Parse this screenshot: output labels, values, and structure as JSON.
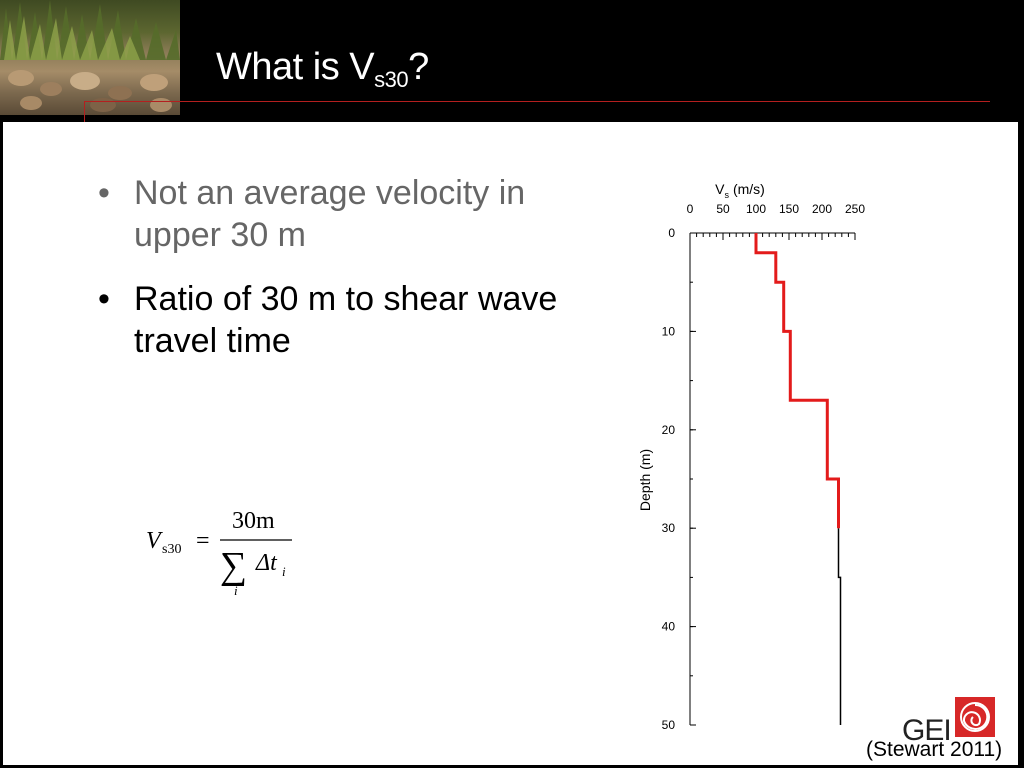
{
  "title": {
    "main": "What is V",
    "sub": "s30",
    "end": "?"
  },
  "bullets": [
    {
      "marker": "•",
      "text": "Not an average velocity in upper 30 m"
    },
    {
      "marker": "•",
      "text": "Ratio of 30 m to shear wave travel time"
    }
  ],
  "formula": {
    "lhs_symbol": "V",
    "lhs_sub": "s30",
    "equals": "=",
    "numerator": "30m",
    "sum": "∑",
    "sum_index": "i",
    "delta": "Δt",
    "delta_sub": "i"
  },
  "citation": "(Stewart 2011)",
  "logo_text": "GEI",
  "colors": {
    "highlight": "#e31b1b",
    "profile": "#000000",
    "rule": "#b41f1f"
  },
  "chart_data": {
    "type": "line",
    "xlabel": {
      "symbol": "V",
      "sub": "s",
      "unit": "(m/s)"
    },
    "ylabel": "Depth (m)",
    "xlim": [
      0,
      250
    ],
    "ylim": [
      0,
      50
    ],
    "y_inverted": true,
    "x_axis_position": "top",
    "x_ticks": [
      0,
      50,
      100,
      150,
      200,
      250
    ],
    "y_ticks": [
      0,
      10,
      20,
      30,
      40,
      50
    ],
    "grid": false,
    "series": [
      {
        "style": "step-profile",
        "highlighted_to_depth": 30,
        "points": [
          [
            100,
            0
          ],
          [
            100,
            2
          ],
          [
            130,
            2
          ],
          [
            130,
            5
          ],
          [
            142,
            5
          ],
          [
            142,
            10
          ],
          [
            152,
            10
          ],
          [
            152,
            17
          ],
          [
            208,
            17
          ],
          [
            208,
            25
          ],
          [
            225,
            25
          ],
          [
            225,
            35
          ],
          [
            228,
            35
          ],
          [
            228,
            50
          ]
        ]
      }
    ]
  }
}
